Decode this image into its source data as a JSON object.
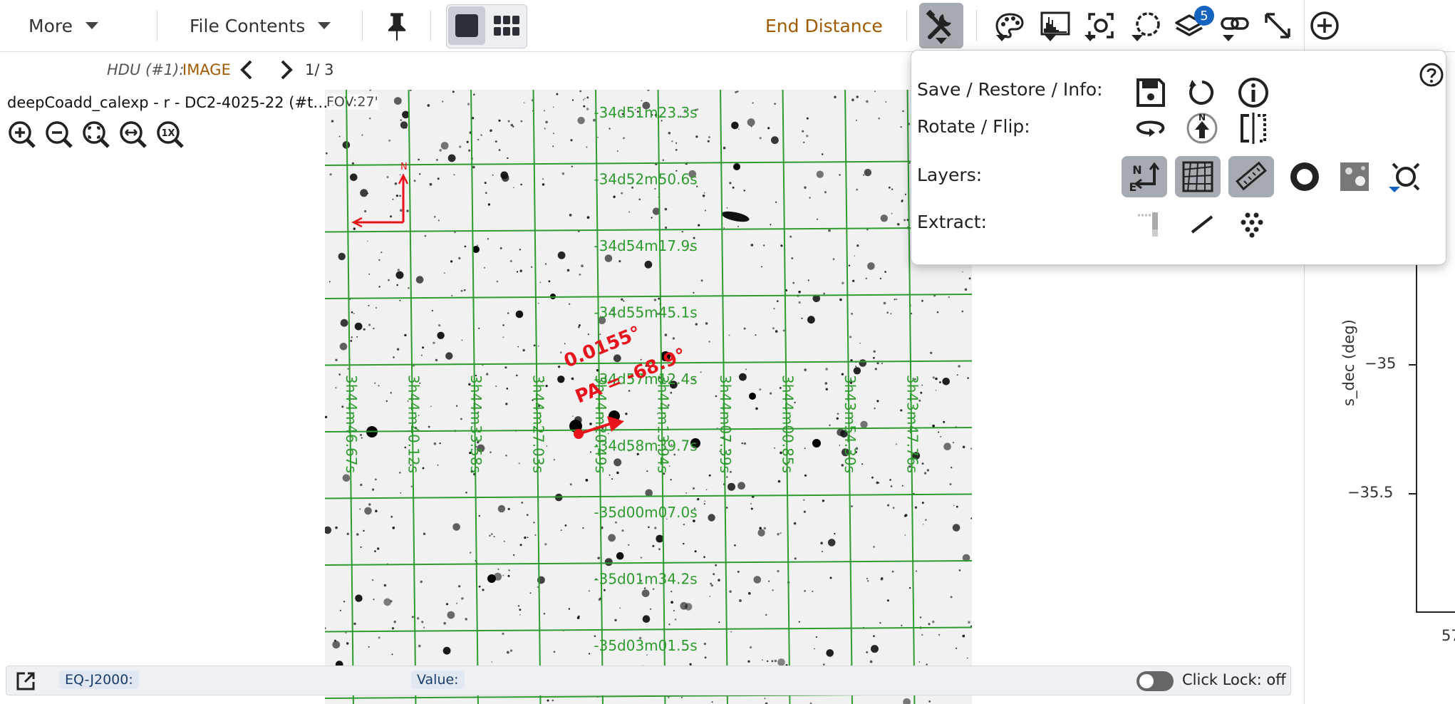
{
  "toolbar": {
    "more_label": "More",
    "file_contents_label": "File Contents",
    "end_distance_label": "End Distance",
    "layers_badge": "5"
  },
  "image_header": {
    "hdu_prefix": "HDU (#1):",
    "hdu_type": "IMAGE",
    "page_indicator": "1/ 3",
    "image_title": "deepCoadd_calexp - r - DC2-4025-22 (#t…",
    "fov": "FOV:27'"
  },
  "overlay": {
    "distance_label": "0.0155°",
    "pa_label": "PA = -68.9°",
    "compass_north": "N",
    "dec_labels": [
      "-34d51m23.3s",
      "-34d52m50.6s",
      "-34d54m17.9s",
      "-34d55m45.1s",
      "-34d57m12.4s",
      "-34d58m39.7s",
      "-35d00m07.0s",
      "-35d01m34.2s",
      "-35d03m01.5s"
    ],
    "ra_labels": [
      "3h44m46.67s",
      "3h44m40.12s",
      "3h44m33.58s",
      "3h44m27.03s",
      "3h44m20.49s",
      "3h44m13.94s",
      "3h44m07.39s",
      "3h44m00.85s",
      "3h43m54.30s",
      "3h43m47.76s"
    ]
  },
  "status_bar": {
    "coord_label": "EQ-J2000:",
    "value_label": "Value:",
    "click_lock_label": "Click Lock: off"
  },
  "popup": {
    "rows": [
      {
        "label": "Save / Restore / Info:"
      },
      {
        "label": "Rotate / Flip:"
      },
      {
        "label": "Layers:"
      },
      {
        "label": "Extract:"
      }
    ],
    "layer_icons_n": "N",
    "layer_icons_e": "E"
  },
  "plot": {
    "ylabel": "s_dec (deg)",
    "yticks": [
      "−35",
      "−35.5"
    ],
    "xtick_partial": "57"
  },
  "colors": {
    "accent_orange": "#a05a00",
    "grid_green": "#2e9b2e",
    "measure_red": "#e8141d",
    "badge_blue": "#1565c0",
    "selected_gray": "#a6abb2"
  }
}
